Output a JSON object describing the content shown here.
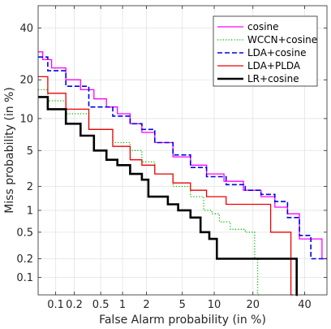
{
  "chart_data": {
    "type": "line",
    "title": "",
    "xlabel": "False Alarm probability (in %)",
    "ylabel": "Miss probability (in %)",
    "xscale": "probit",
    "yscale": "probit",
    "xlim": [
      0.05,
      50
    ],
    "ylim": [
      0.05,
      50
    ],
    "x_ticks": [
      0.1,
      0.2,
      0.5,
      1,
      2,
      5,
      10,
      20,
      40
    ],
    "x_tick_labels": [
      "0.1",
      "0.2",
      "0.5",
      "1",
      "2",
      "5",
      "10",
      "20",
      "40"
    ],
    "y_ticks": [
      0.1,
      0.2,
      0.5,
      1,
      2,
      5,
      10,
      20,
      40
    ],
    "y_tick_labels": [
      "0.1",
      "0.2",
      "0.5",
      "1",
      "2",
      "5",
      "10",
      "20",
      "40"
    ],
    "grid": true,
    "legend_position": "top-right",
    "series": [
      {
        "name": "cosine",
        "color": "#ff00ff",
        "line_style": "solid",
        "line_width": 1.3,
        "points": [
          [
            0.05,
            30
          ],
          [
            0.07,
            27
          ],
          [
            0.1,
            24
          ],
          [
            0.2,
            20
          ],
          [
            0.3,
            17
          ],
          [
            0.5,
            14.5
          ],
          [
            0.7,
            12.5
          ],
          [
            1.0,
            11
          ],
          [
            1.5,
            9
          ],
          [
            2.0,
            7.5
          ],
          [
            3.0,
            6
          ],
          [
            5.0,
            4.3
          ],
          [
            7.0,
            3.5
          ],
          [
            10.0,
            2.8
          ],
          [
            14.0,
            2.3
          ],
          [
            20.0,
            1.8
          ],
          [
            25.0,
            1.5
          ],
          [
            30.0,
            1.1
          ],
          [
            35.0,
            0.9
          ],
          [
            40.0,
            0.4
          ],
          [
            45.0,
            0.4
          ],
          [
            50.0,
            0.2
          ]
        ]
      },
      {
        "name": "WCCN+cosine",
        "color": "#00bb00",
        "line_style": "dotted",
        "line_width": 1.3,
        "points": [
          [
            0.05,
            17
          ],
          [
            0.1,
            14
          ],
          [
            0.2,
            11
          ],
          [
            0.5,
            8
          ],
          [
            1.0,
            6
          ],
          [
            1.5,
            5
          ],
          [
            2.0,
            3.8
          ],
          [
            3.0,
            2.8
          ],
          [
            5.0,
            2.0
          ],
          [
            7.0,
            1.5
          ],
          [
            9.0,
            1.0
          ],
          [
            10.0,
            0.9
          ],
          [
            12.0,
            0.7
          ],
          [
            15.0,
            0.55
          ],
          [
            20.0,
            0.5
          ],
          [
            21.0,
            0.2
          ],
          [
            22.0,
            0.05
          ]
        ]
      },
      {
        "name": "LDA+cosine",
        "color": "#0000ee",
        "line_style": "dashed",
        "line_width": 1.6,
        "points": [
          [
            0.05,
            28
          ],
          [
            0.1,
            23
          ],
          [
            0.2,
            18
          ],
          [
            0.5,
            12.5
          ],
          [
            1.0,
            10.5
          ],
          [
            1.5,
            9
          ],
          [
            2.0,
            8
          ],
          [
            3.0,
            6
          ],
          [
            5.0,
            4.5
          ],
          [
            7.0,
            3.3
          ],
          [
            10.0,
            2.6
          ],
          [
            15.0,
            2.1
          ],
          [
            20.0,
            1.8
          ],
          [
            25.0,
            1.6
          ],
          [
            30.0,
            1.3
          ],
          [
            35.0,
            0.8
          ],
          [
            40.0,
            0.45
          ],
          [
            45.0,
            0.2
          ],
          [
            50.0,
            0.2
          ]
        ]
      },
      {
        "name": "LDA+PLDA",
        "color": "#ee0000",
        "line_style": "solid",
        "line_width": 1.3,
        "points": [
          [
            0.05,
            21
          ],
          [
            0.1,
            16
          ],
          [
            0.2,
            12
          ],
          [
            0.5,
            8
          ],
          [
            1.0,
            5.5
          ],
          [
            1.5,
            4
          ],
          [
            2.0,
            3.5
          ],
          [
            3.0,
            2.8
          ],
          [
            5.0,
            2.2
          ],
          [
            7.0,
            1.8
          ],
          [
            10.0,
            1.5
          ],
          [
            15.0,
            1.2
          ],
          [
            20.0,
            1.2
          ],
          [
            25.0,
            1.2
          ],
          [
            27.0,
            0.5
          ],
          [
            33.0,
            0.5
          ],
          [
            35.0,
            0.05
          ]
        ]
      },
      {
        "name": "LR+cosine",
        "color": "#000000",
        "line_style": "solid",
        "line_width": 2.6,
        "points": [
          [
            0.05,
            15
          ],
          [
            0.1,
            12
          ],
          [
            0.2,
            9
          ],
          [
            0.3,
            7
          ],
          [
            0.5,
            5
          ],
          [
            0.7,
            4
          ],
          [
            1.0,
            3.5
          ],
          [
            1.5,
            2.8
          ],
          [
            2.0,
            2.4
          ],
          [
            2.2,
            1.5
          ],
          [
            3.0,
            1.5
          ],
          [
            4.0,
            1.2
          ],
          [
            5.0,
            1.0
          ],
          [
            7.0,
            0.8
          ],
          [
            8.0,
            0.5
          ],
          [
            10.0,
            0.4
          ],
          [
            11.0,
            0.2
          ],
          [
            20.0,
            0.2
          ],
          [
            36.0,
            0.2
          ],
          [
            37.0,
            0.05
          ]
        ]
      }
    ]
  }
}
